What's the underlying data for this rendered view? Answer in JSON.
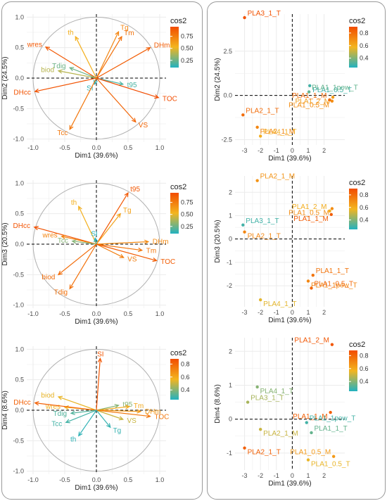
{
  "colors": {
    "low": "#22b2c0",
    "mid": "#f3b51f",
    "high": "#f24c00",
    "grid": "#ebebeb",
    "zero": "#000000",
    "circle": "#b0b0b0"
  },
  "chart_data": [
    {
      "id": "var12",
      "type": "scatter",
      "title": "",
      "xlabel": "Dim1 (39.6%)",
      "ylabel": "Dim2 (24.5%)",
      "xlim": [
        -1.1,
        1.1
      ],
      "ylim": [
        -1.05,
        1.05
      ],
      "xticks": [
        "-1.0",
        "-0.5",
        "0.0",
        "0.5",
        "1.0"
      ],
      "xtick_values": [
        -1,
        -0.5,
        0,
        0.5,
        1
      ],
      "yticks": [
        "-1.0",
        "-0.5",
        "0.0",
        "0.5",
        "1.0"
      ],
      "ytick_values": [
        -1,
        -0.5,
        0,
        0.5,
        1
      ],
      "circle": true,
      "arrows": true,
      "legend": {
        "title": "cos2",
        "ticks": [
          "0.75",
          "0.50",
          "0.25"
        ],
        "tick_values": [
          0.75,
          0.5,
          0.25
        ],
        "range": [
          0.1,
          0.95
        ]
      },
      "points": [
        {
          "label": "wres",
          "x": -0.8,
          "y": 0.51,
          "cos2": 0.9
        },
        {
          "label": "th",
          "x": -0.33,
          "y": 0.68,
          "cos2": 0.55
        },
        {
          "label": "Tg",
          "x": 0.35,
          "y": 0.76,
          "cos2": 0.72
        },
        {
          "label": "Tm",
          "x": 0.4,
          "y": 0.68,
          "cos2": 0.8
        },
        {
          "label": "DHm",
          "x": 0.85,
          "y": 0.5,
          "cos2": 0.88
        },
        {
          "label": "biod",
          "x": -0.6,
          "y": 0.12,
          "cos2": 0.4
        },
        {
          "label": "Tdig",
          "x": -0.42,
          "y": 0.17,
          "cos2": 0.25
        },
        {
          "label": "SI",
          "x": -0.03,
          "y": -0.1,
          "cos2": 0.12
        },
        {
          "label": "t95",
          "x": 0.42,
          "y": -0.1,
          "cos2": 0.18
        },
        {
          "label": "TOC",
          "x": 0.98,
          "y": -0.32,
          "cos2": 0.95
        },
        {
          "label": "DHcc",
          "x": -0.97,
          "y": -0.22,
          "cos2": 0.92
        },
        {
          "label": "VS",
          "x": 0.62,
          "y": -0.72,
          "cos2": 0.85
        },
        {
          "label": "Tcc",
          "x": -0.42,
          "y": -0.84,
          "cos2": 0.78
        }
      ]
    },
    {
      "id": "var13",
      "type": "scatter",
      "title": "",
      "xlabel": "Dim1 (39.6%)",
      "ylabel": "Dim3 (20.5%)",
      "xlim": [
        -1.1,
        1.1
      ],
      "ylim": [
        -1.05,
        1.05
      ],
      "xticks": [
        "-1.0",
        "-0.5",
        "0.0",
        "0.5",
        "1.0"
      ],
      "xtick_values": [
        -1,
        -0.5,
        0,
        0.5,
        1
      ],
      "yticks": [
        "-1.0",
        "-0.5",
        "0.0",
        "0.5",
        "1.0"
      ],
      "ytick_values": [
        -1,
        -0.5,
        0,
        0.5,
        1
      ],
      "circle": true,
      "arrows": true,
      "legend": {
        "title": "cos2",
        "ticks": [
          "0.75",
          "0.50",
          "0.25"
        ],
        "tick_values": [
          0.75,
          0.5,
          0.25
        ],
        "range": [
          0.1,
          0.95
        ]
      },
      "points": [
        {
          "label": "t95",
          "x": 0.5,
          "y": 0.84,
          "cos2": 0.9
        },
        {
          "label": "th",
          "x": -0.28,
          "y": 0.62,
          "cos2": 0.55
        },
        {
          "label": "Tg",
          "x": 0.38,
          "y": 0.5,
          "cos2": 0.6
        },
        {
          "label": "DHcc",
          "x": -0.98,
          "y": 0.28,
          "cos2": 0.92
        },
        {
          "label": "wres",
          "x": -0.55,
          "y": 0.13,
          "cos2": 0.72
        },
        {
          "label": "Tcc",
          "x": -0.38,
          "y": 0.05,
          "cos2": 0.3
        },
        {
          "label": "SI",
          "x": -0.02,
          "y": 0.1,
          "cos2": 0.1
        },
        {
          "label": "DHm",
          "x": 0.82,
          "y": 0.04,
          "cos2": 0.7
        },
        {
          "label": "Tm",
          "x": 0.72,
          "y": -0.1,
          "cos2": 0.78
        },
        {
          "label": "VS",
          "x": 0.43,
          "y": -0.22,
          "cos2": 0.75
        },
        {
          "label": "TOC",
          "x": 0.95,
          "y": -0.27,
          "cos2": 0.88
        },
        {
          "label": "biod",
          "x": -0.6,
          "y": -0.5,
          "cos2": 0.82
        },
        {
          "label": "Tdig",
          "x": -0.42,
          "y": -0.73,
          "cos2": 0.8
        }
      ]
    },
    {
      "id": "var14",
      "type": "scatter",
      "title": "",
      "xlabel": "Dim1 (39.6%)",
      "ylabel": "Dim4 (8.6%)",
      "xlim": [
        -1.1,
        1.1
      ],
      "ylim": [
        -1.05,
        1.05
      ],
      "xticks": [
        "-1.0",
        "-0.5",
        "0.0",
        "0.5",
        "1.0"
      ],
      "xtick_values": [
        -1,
        -0.5,
        0,
        0.5,
        1
      ],
      "yticks": [
        "-1.0",
        "-0.5",
        "0.0",
        "0.5",
        "1.0"
      ],
      "ytick_values": [
        -1,
        -0.5,
        0,
        0.5,
        1
      ],
      "circle": true,
      "arrows": true,
      "legend": {
        "title": "cos2",
        "ticks": [
          "0.8",
          "0.6",
          "0.4"
        ],
        "tick_values": [
          0.8,
          0.6,
          0.4
        ],
        "range": [
          0.25,
          0.88
        ]
      },
      "points": [
        {
          "label": "SI",
          "x": 0.06,
          "y": 0.85,
          "cos2": 0.85
        },
        {
          "label": "biod",
          "x": -0.6,
          "y": 0.22,
          "cos2": 0.55
        },
        {
          "label": "wres",
          "x": -0.5,
          "y": 0.05,
          "cos2": 0.58
        },
        {
          "label": "DHcc",
          "x": -0.97,
          "y": 0.12,
          "cos2": 0.82
        },
        {
          "label": "Tdig",
          "x": -0.4,
          "y": -0.05,
          "cos2": 0.32
        },
        {
          "label": "Tcc",
          "x": -0.48,
          "y": -0.2,
          "cos2": 0.3
        },
        {
          "label": "th",
          "x": -0.28,
          "y": -0.42,
          "cos2": 0.27
        },
        {
          "label": "t95",
          "x": 0.35,
          "y": 0.08,
          "cos2": 0.4
        },
        {
          "label": "Tm",
          "x": 0.52,
          "y": 0.06,
          "cos2": 0.6
        },
        {
          "label": "DHm",
          "x": 0.7,
          "y": -0.02,
          "cos2": 0.65
        },
        {
          "label": "VS",
          "x": 0.42,
          "y": -0.15,
          "cos2": 0.5
        },
        {
          "label": "TOC",
          "x": 0.85,
          "y": -0.1,
          "cos2": 0.75
        },
        {
          "label": "Tg",
          "x": 0.22,
          "y": -0.28,
          "cos2": 0.28
        }
      ]
    },
    {
      "id": "ind12",
      "type": "scatter",
      "title": "",
      "xlabel": "Dim1 (39.6%)",
      "ylabel": "Dim2 (24.5%)",
      "xlim": [
        -3.6,
        3.3
      ],
      "ylim": [
        -2.8,
        4.6
      ],
      "xticks": [
        "-3",
        "-2",
        "-1",
        "0",
        "1",
        "2"
      ],
      "xtick_values": [
        -3,
        -2,
        -1,
        0,
        1,
        2
      ],
      "yticks": [
        "2.5",
        "0.0",
        "-2.5"
      ],
      "ytick_values": [
        2.5,
        0,
        -2.5
      ],
      "circle": false,
      "arrows": false,
      "legend": {
        "title": "cos2",
        "ticks": [
          "0.8",
          "0.6",
          "0.4"
        ],
        "tick_values": [
          0.8,
          0.6,
          0.4
        ],
        "range": [
          0.25,
          0.9
        ]
      },
      "points": [
        {
          "label": "PLA3_1_T",
          "x": -3.0,
          "y": 4.4,
          "cos2": 0.88
        },
        {
          "label": "PLA1_0.5_T",
          "x": 1.1,
          "y": 0.55,
          "cos2": 0.3
        },
        {
          "label": "PLA1_1pow_T",
          "x": 1.05,
          "y": 0.2,
          "cos2": 0.35
        },
        {
          "label": "PLA1_2_M",
          "x": 2.55,
          "y": -0.1,
          "cos2": 0.65
        },
        {
          "label": "PLA1_1_M",
          "x": 2.35,
          "y": -0.25,
          "cos2": 0.8
        },
        {
          "label": "PLA1_0.5_M",
          "x": 2.5,
          "y": -0.32,
          "cos2": 0.7
        },
        {
          "label": "PLA2_1_T",
          "x": -3.1,
          "y": -1.1,
          "cos2": 0.8
        },
        {
          "label": "PLA2_1_M",
          "x": -2.2,
          "y": -1.8,
          "cos2": 0.72
        },
        {
          "label": "PLA4_1_T",
          "x": -2.0,
          "y": -2.3,
          "cos2": 0.6
        }
      ]
    },
    {
      "id": "ind13",
      "type": "scatter",
      "title": "",
      "xlabel": "Dim1 (39.6%)",
      "ylabel": "Dim3 (20.5%)",
      "xlim": [
        -3.6,
        3.3
      ],
      "ylim": [
        -2.9,
        2.7
      ],
      "xticks": [
        "-3",
        "-2",
        "-1",
        "0",
        "1",
        "2"
      ],
      "xtick_values": [
        -3,
        -2,
        -1,
        0,
        1,
        2
      ],
      "yticks": [
        "2",
        "1",
        "0",
        "-1",
        "-2"
      ],
      "ytick_values": [
        2,
        1,
        0,
        -1,
        -2
      ],
      "circle": false,
      "arrows": false,
      "legend": {
        "title": "cos2",
        "ticks": [
          "0.8",
          "0.6",
          "0.4"
        ],
        "tick_values": [
          0.8,
          0.6,
          0.4
        ],
        "range": [
          0.25,
          0.9
        ]
      },
      "points": [
        {
          "label": "PLA2_1_M",
          "x": -2.2,
          "y": 2.5,
          "cos2": 0.68
        },
        {
          "label": "PLA1_0.5_M",
          "x": 2.5,
          "y": 1.3,
          "cos2": 0.7
        },
        {
          "label": "PLA1_2_M",
          "x": 2.35,
          "y": 1.2,
          "cos2": 0.6
        },
        {
          "label": "PLA1_1_M",
          "x": 2.45,
          "y": 1.05,
          "cos2": 0.85
        },
        {
          "label": "PLA3_1_T",
          "x": -3.1,
          "y": 0.6,
          "cos2": 0.3
        },
        {
          "label": "PLA2_1_T",
          "x": -3.0,
          "y": 0.3,
          "cos2": 0.72
        },
        {
          "label": "PLA1_1_T",
          "x": 1.3,
          "y": -1.55,
          "cos2": 0.78
        },
        {
          "label": "PLA1_1pow_T",
          "x": 1.0,
          "y": -1.8,
          "cos2": 0.72
        },
        {
          "label": "PLA1_0.5_T",
          "x": 1.2,
          "y": -2.1,
          "cos2": 0.82
        },
        {
          "label": "PLA4_1_T",
          "x": -2.0,
          "y": -2.6,
          "cos2": 0.55
        }
      ]
    },
    {
      "id": "ind14",
      "type": "scatter",
      "title": "",
      "xlabel": "Dim1 (39.6%)",
      "ylabel": "Dim4 (8.6%)",
      "xlim": [
        -3.6,
        3.3
      ],
      "ylim": [
        -1.5,
        2.4
      ],
      "xticks": [
        "-3",
        "-2",
        "-1",
        "0",
        "1",
        "2"
      ],
      "xtick_values": [
        -3,
        -2,
        -1,
        0,
        1,
        2
      ],
      "yticks": [
        "2",
        "1",
        "0",
        "-1"
      ],
      "ytick_values": [
        2,
        1,
        0,
        -1
      ],
      "circle": false,
      "arrows": false,
      "legend": {
        "title": "cos2",
        "ticks": [
          "0.8",
          "0.6",
          "0.4"
        ],
        "tick_values": [
          0.8,
          0.6,
          0.4
        ],
        "range": [
          0.25,
          0.88
        ]
      },
      "points": [
        {
          "label": "PLA1_2_M",
          "x": 2.5,
          "y": 2.2,
          "cos2": 0.85
        },
        {
          "label": "PLA4_1_T",
          "x": -2.2,
          "y": 0.95,
          "cos2": 0.4
        },
        {
          "label": "PLA3_1_T",
          "x": -2.8,
          "y": 0.5,
          "cos2": 0.45
        },
        {
          "label": "PLA1_1_M",
          "x": 2.4,
          "y": 0.2,
          "cos2": 0.82
        },
        {
          "label": "PLA1_1pow_T",
          "x": 0.9,
          "y": -0.1,
          "cos2": 0.3
        },
        {
          "label": "PLA2_1_M",
          "x": -2.0,
          "y": -0.3,
          "cos2": 0.5
        },
        {
          "label": "PLA1_1_T",
          "x": 1.2,
          "y": -0.4,
          "cos2": 0.35
        },
        {
          "label": "PLA2_1_T",
          "x": -3.0,
          "y": -0.85,
          "cos2": 0.82
        },
        {
          "label": "PLA1_0.5_M",
          "x": 2.6,
          "y": -1.1,
          "cos2": 0.65
        },
        {
          "label": "PLA1_0.5_T",
          "x": 1.0,
          "y": -1.2,
          "cos2": 0.55
        }
      ]
    }
  ]
}
